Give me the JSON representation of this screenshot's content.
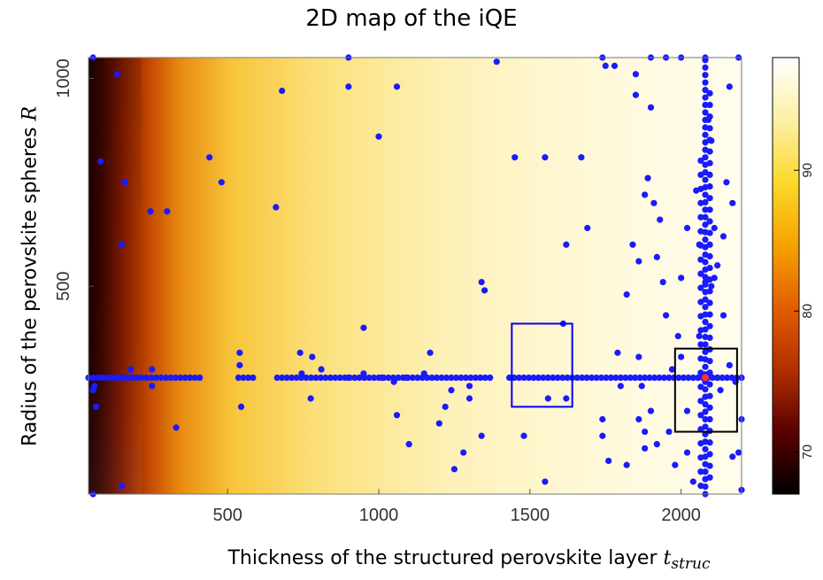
{
  "chart_data": {
    "type": "heatmap",
    "title": "2D map of the iQE",
    "xlabel": {
      "text": "Thickness of the structured perovskite layer ",
      "var": "t",
      "sub": "struc"
    },
    "ylabel": {
      "text": "Radius of the perovskite spheres ",
      "var": "R"
    },
    "xlim": [
      40,
      2200
    ],
    "ylim": [
      0,
      1050
    ],
    "x_ticks": [
      500,
      1000,
      1500,
      2000
    ],
    "y_ticks": [
      500,
      1000
    ],
    "colorbar": {
      "range": [
        67,
        98
      ],
      "ticks": [
        70,
        80,
        90
      ],
      "colormap": "afmhot",
      "colors": [
        "#000000",
        "#5a0000",
        "#b23000",
        "#e35d00",
        "#f5a300",
        "#fbd92c",
        "#fdf0a6",
        "#ffffff"
      ]
    },
    "heatmap_description": "iQE low near small thickness, rising to ~97 for thickness > 800",
    "scatter": {
      "name": "",
      "color": "#1a1aff",
      "points": [
        [
          55,
          1050
        ],
        [
          55,
          250
        ],
        [
          55,
          0
        ],
        [
          60,
          260
        ],
        [
          65,
          210
        ],
        [
          80,
          800
        ],
        [
          135,
          1010
        ],
        [
          160,
          750
        ],
        [
          150,
          600
        ],
        [
          150,
          20
        ],
        [
          180,
          300
        ],
        [
          250,
          300
        ],
        [
          250,
          260
        ],
        [
          245,
          680
        ],
        [
          300,
          680
        ],
        [
          330,
          160
        ],
        [
          440,
          810
        ],
        [
          480,
          750
        ],
        [
          540,
          340
        ],
        [
          540,
          310
        ],
        [
          545,
          210
        ],
        [
          660,
          690
        ],
        [
          680,
          970
        ],
        [
          740,
          340
        ],
        [
          745,
          290
        ],
        [
          775,
          230
        ],
        [
          780,
          330
        ],
        [
          810,
          300
        ],
        [
          900,
          1050
        ],
        [
          900,
          980
        ],
        [
          900,
          280
        ],
        [
          950,
          290
        ],
        [
          950,
          400
        ],
        [
          1000,
          860
        ],
        [
          1010,
          280
        ],
        [
          1050,
          270
        ],
        [
          1060,
          980
        ],
        [
          1060,
          190
        ],
        [
          1090,
          280
        ],
        [
          1100,
          120
        ],
        [
          1150,
          290
        ],
        [
          1170,
          340
        ],
        [
          1200,
          170
        ],
        [
          1220,
          210
        ],
        [
          1240,
          250
        ],
        [
          1250,
          60
        ],
        [
          1280,
          100
        ],
        [
          1300,
          260
        ],
        [
          1300,
          230
        ],
        [
          1340,
          140
        ],
        [
          1340,
          510
        ],
        [
          1350,
          490
        ],
        [
          1390,
          1040
        ],
        [
          1450,
          810
        ],
        [
          1480,
          140
        ],
        [
          1550,
          810
        ],
        [
          1550,
          30
        ],
        [
          1560,
          230
        ],
        [
          1610,
          410
        ],
        [
          1620,
          600
        ],
        [
          1620,
          230
        ],
        [
          1670,
          810
        ],
        [
          1690,
          640
        ],
        [
          1740,
          1050
        ],
        [
          1740,
          180
        ],
        [
          1740,
          140
        ],
        [
          1750,
          1030
        ],
        [
          1760,
          80
        ],
        [
          1780,
          1030
        ],
        [
          1790,
          340
        ],
        [
          1800,
          260
        ],
        [
          1820,
          70
        ],
        [
          1850,
          1010
        ],
        [
          1850,
          960
        ],
        [
          1860,
          180
        ],
        [
          1870,
          260
        ],
        [
          1880,
          150
        ],
        [
          1880,
          110
        ],
        [
          1890,
          760
        ],
        [
          1900,
          1050
        ],
        [
          1900,
          930
        ],
        [
          1900,
          200
        ],
        [
          1920,
          570
        ],
        [
          1920,
          120
        ],
        [
          1950,
          1050
        ],
        [
          1950,
          430
        ],
        [
          1980,
          70
        ],
        [
          2000,
          1050
        ],
        [
          2000,
          520
        ],
        [
          2000,
          330
        ],
        [
          2020,
          200
        ],
        [
          2020,
          100
        ],
        [
          2040,
          30
        ],
        [
          2050,
          730
        ],
        [
          2060,
          600
        ],
        [
          2060,
          380
        ],
        [
          2080,
          1050
        ],
        [
          2080,
          510
        ],
        [
          2090,
          900
        ],
        [
          2100,
          850
        ],
        [
          2110,
          640
        ],
        [
          2120,
          550
        ],
        [
          2140,
          430
        ],
        [
          2160,
          980
        ],
        [
          2170,
          700
        ],
        [
          2180,
          270
        ],
        [
          2190,
          1050
        ],
        [
          2190,
          100
        ],
        [
          2200,
          10
        ],
        [
          2200,
          180
        ],
        [
          2100,
          500
        ],
        [
          2110,
          520
        ],
        [
          2120,
          280
        ],
        [
          2130,
          250
        ],
        [
          2140,
          620
        ],
        [
          2150,
          750
        ],
        [
          2160,
          310
        ],
        [
          2170,
          90
        ],
        [
          2020,
          640
        ],
        [
          1990,
          380
        ],
        [
          1960,
          150
        ],
        [
          1940,
          510
        ],
        [
          1930,
          660
        ],
        [
          1910,
          700
        ],
        [
          1880,
          720
        ],
        [
          1860,
          560
        ],
        [
          1840,
          600
        ],
        [
          1820,
          480
        ],
        [
          1860,
          330
        ],
        [
          1970,
          300
        ]
      ],
      "dense_columns": [
        {
          "x": 2080,
          "y_from": 0,
          "y_to": 1050,
          "step": 18
        },
        {
          "x": 2095,
          "y_from": 40,
          "y_to": 980,
          "step": 28
        },
        {
          "x": 2065,
          "y_from": 20,
          "y_to": 820,
          "step": 34
        }
      ],
      "dense_row": {
        "y": 280,
        "x_from": 40,
        "x_to": 2200,
        "step": 16
      }
    },
    "highlight_point": {
      "x": 2080,
      "y": 280,
      "color": "#ff3030"
    },
    "rectangles": [
      {
        "x0": 1440,
        "x1": 1640,
        "y0": 210,
        "y1": 410,
        "color": "#0000ff"
      },
      {
        "x0": 1980,
        "x1": 2185,
        "y0": 150,
        "y1": 350,
        "color": "#000000"
      }
    ]
  }
}
